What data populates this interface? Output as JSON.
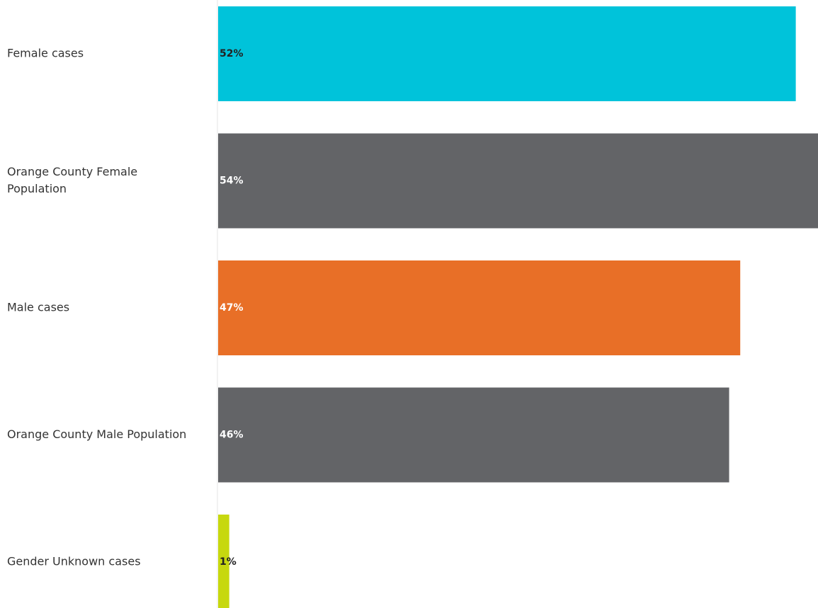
{
  "chart_data": {
    "type": "bar",
    "orientation": "horizontal",
    "categories": [
      [
        "Female cases"
      ],
      [
        "Orange County Female",
        "Population"
      ],
      [
        "Male cases"
      ],
      [
        "Orange County Male Population"
      ],
      [
        "Gender Unknown cases"
      ]
    ],
    "values": [
      52,
      54,
      47,
      46,
      1
    ],
    "value_labels": [
      "52%",
      "54%",
      "47%",
      "46%",
      "1%"
    ],
    "colors": [
      "#00c3da",
      "#636467",
      "#e86f27",
      "#636467",
      "#c7d80f"
    ],
    "value_label_colors": [
      "#222222",
      "#ffffff",
      "#ffffff",
      "#ffffff",
      "#222222"
    ],
    "xlim": [
      0,
      54
    ],
    "title": "",
    "xlabel": "",
    "ylabel": "",
    "grid": false,
    "legend": "none"
  }
}
